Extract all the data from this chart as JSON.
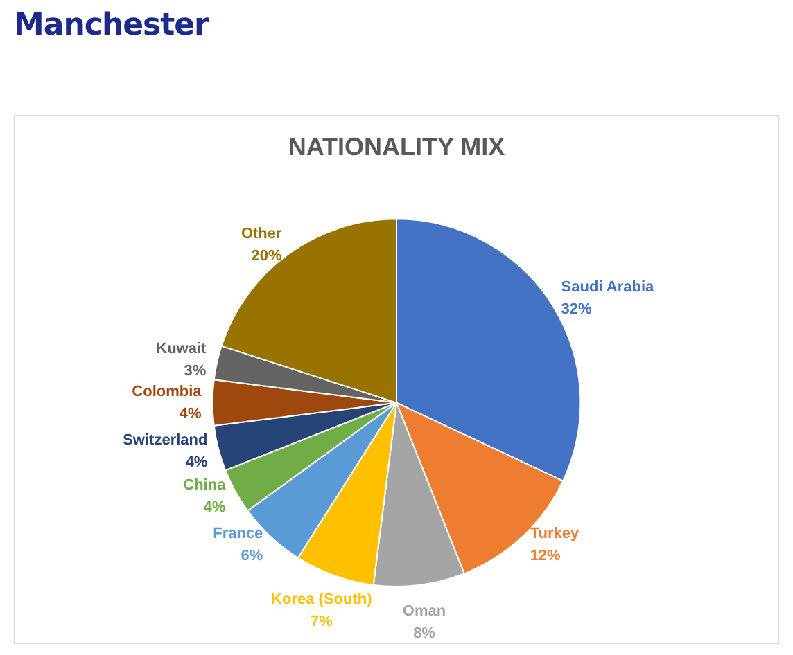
{
  "chart_data": {
    "type": "pie",
    "title": "NATIONALITY MIX",
    "subtitle": "Manchester",
    "categories": [
      "Saudi Arabia",
      "Turkey",
      "Oman",
      "Korea (South)",
      "France",
      "China",
      "Switzerland",
      "Colombia",
      "Kuwait",
      "Other"
    ],
    "values": [
      32,
      12,
      8,
      7,
      6,
      4,
      4,
      4,
      3,
      20
    ],
    "colors": [
      "#4472c4",
      "#ed7d31",
      "#a5a5a5",
      "#ffc000",
      "#5b9bd5",
      "#70ad47",
      "#264478",
      "#9e480e",
      "#636363",
      "#997300"
    ],
    "value_labels": [
      "32%",
      "12%",
      "8%",
      "7%",
      "6%",
      "4%",
      "4%",
      "4%",
      "3%",
      "20%"
    ],
    "legend": false
  }
}
